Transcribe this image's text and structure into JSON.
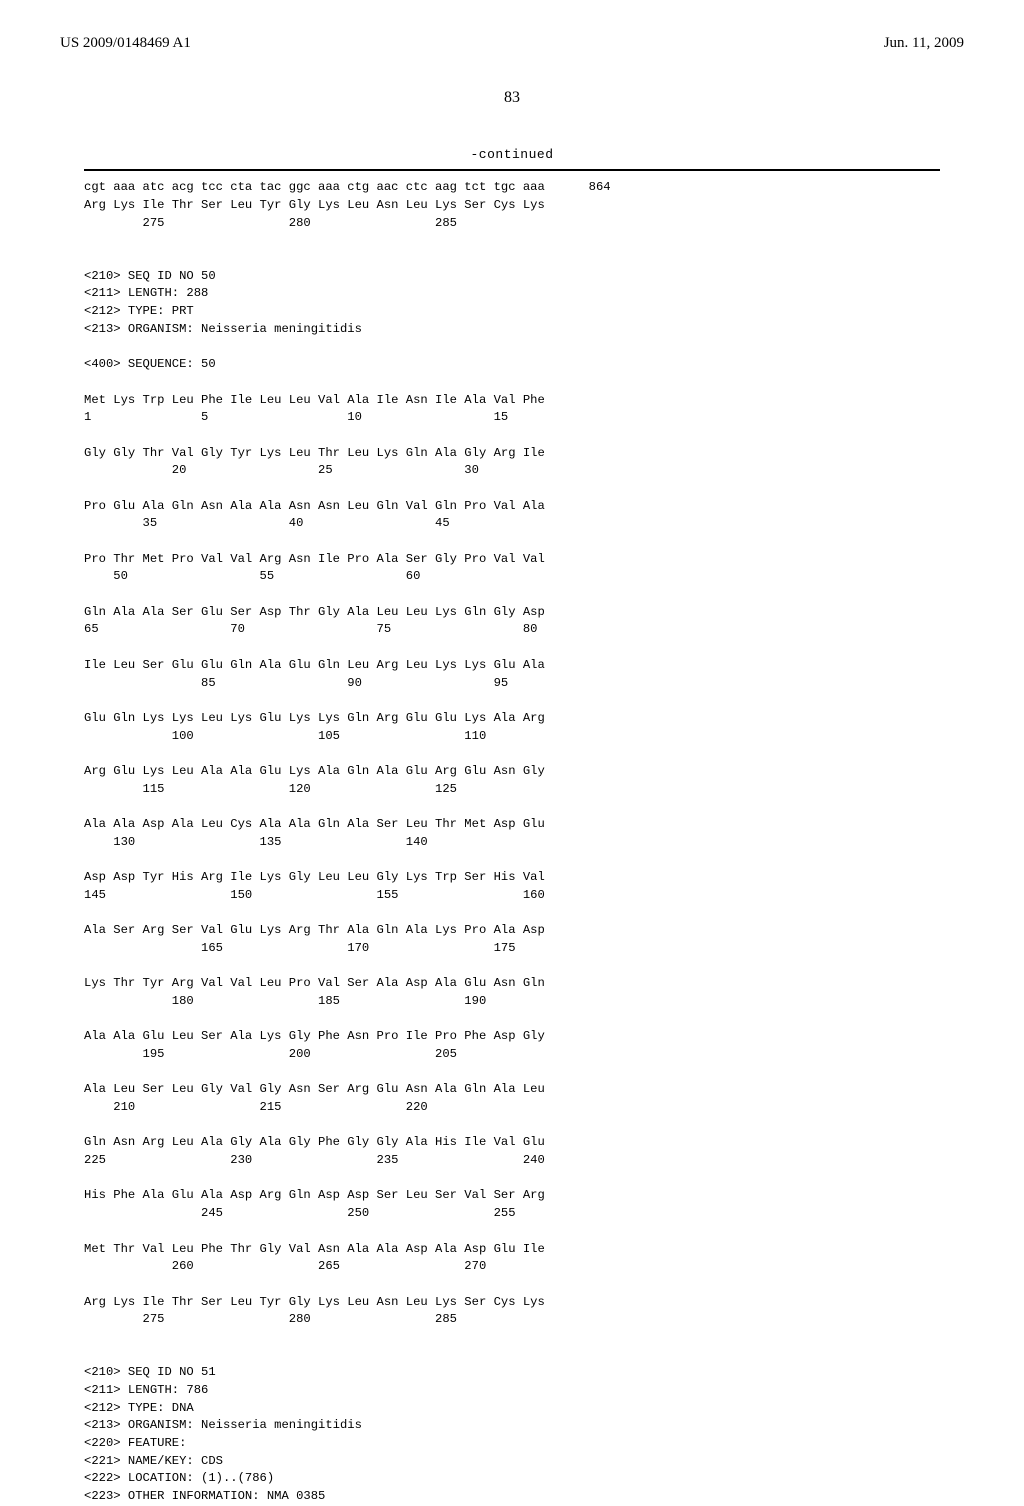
{
  "header": {
    "pub_number": "US 2009/0148469 A1",
    "pub_date": "Jun. 11, 2009"
  },
  "page_number": "83",
  "continued_label": "-continued",
  "seq50_hdr": {
    "l1": "<210> SEQ ID NO 50",
    "l2": "<211> LENGTH: 288",
    "l3": "<212> TYPE: PRT",
    "l4": "<213> ORGANISM: Neisseria meningitidis",
    "l5": "<400> SEQUENCE: 50"
  },
  "seq51_hdr": {
    "l1": "<210> SEQ ID NO 51",
    "l2": "<211> LENGTH: 786",
    "l3": "<212> TYPE: DNA",
    "l4": "<213> ORGANISM: Neisseria meningitidis",
    "l5": "<220> FEATURE:",
    "l6": "<221> NAME/KEY: CDS",
    "l7": "<222> LOCATION: (1)..(786)",
    "l8": "<223> OTHER INFORMATION: NMA 0385"
  },
  "top_block": {
    "dna": "cgt aaa atc acg tcc cta tac ggc aaa ctg aac ctc aag tct tgc aaa      864",
    "prot": "Arg Lys Ile Thr Ser Leu Tyr Gly Lys Leu Asn Leu Lys Ser Cys Lys",
    "nums": "        275                 280                 285"
  },
  "rows": [
    {
      "aa": "Met Lys Trp Leu Phe Ile Leu Leu Val Ala Ile Asn Ile Ala Val Phe",
      "nm": "1               5                   10                  15"
    },
    {
      "aa": "Gly Gly Thr Val Gly Tyr Lys Leu Thr Leu Lys Gln Ala Gly Arg Ile",
      "nm": "            20                  25                  30"
    },
    {
      "aa": "Pro Glu Ala Gln Asn Ala Ala Asn Asn Leu Gln Val Gln Pro Val Ala",
      "nm": "        35                  40                  45"
    },
    {
      "aa": "Pro Thr Met Pro Val Val Arg Asn Ile Pro Ala Ser Gly Pro Val Val",
      "nm": "    50                  55                  60"
    },
    {
      "aa": "Gln Ala Ala Ser Glu Ser Asp Thr Gly Ala Leu Leu Lys Gln Gly Asp",
      "nm": "65                  70                  75                  80"
    },
    {
      "aa": "Ile Leu Ser Glu Glu Gln Ala Glu Gln Leu Arg Leu Lys Lys Glu Ala",
      "nm": "                85                  90                  95"
    },
    {
      "aa": "Glu Gln Lys Lys Leu Lys Glu Lys Lys Gln Arg Glu Glu Lys Ala Arg",
      "nm": "            100                 105                 110"
    },
    {
      "aa": "Arg Glu Lys Leu Ala Ala Glu Lys Ala Gln Ala Glu Arg Glu Asn Gly",
      "nm": "        115                 120                 125"
    },
    {
      "aa": "Ala Ala Asp Ala Leu Cys Ala Ala Gln Ala Ser Leu Thr Met Asp Glu",
      "nm": "    130                 135                 140"
    },
    {
      "aa": "Asp Asp Tyr His Arg Ile Lys Gly Leu Leu Gly Lys Trp Ser His Val",
      "nm": "145                 150                 155                 160"
    },
    {
      "aa": "Ala Ser Arg Ser Val Glu Lys Arg Thr Ala Gln Ala Lys Pro Ala Asp",
      "nm": "                165                 170                 175"
    },
    {
      "aa": "Lys Thr Tyr Arg Val Val Leu Pro Val Ser Ala Asp Ala Glu Asn Gln",
      "nm": "            180                 185                 190"
    },
    {
      "aa": "Ala Ala Glu Leu Ser Ala Lys Gly Phe Asn Pro Ile Pro Phe Asp Gly",
      "nm": "        195                 200                 205"
    },
    {
      "aa": "Ala Leu Ser Leu Gly Val Gly Asn Ser Arg Glu Asn Ala Gln Ala Leu",
      "nm": "    210                 215                 220"
    },
    {
      "aa": "Gln Asn Arg Leu Ala Gly Ala Gly Phe Gly Gly Ala His Ile Val Glu",
      "nm": "225                 230                 235                 240"
    },
    {
      "aa": "His Phe Ala Glu Ala Asp Arg Gln Asp Asp Ser Leu Ser Val Ser Arg",
      "nm": "                245                 250                 255"
    },
    {
      "aa": "Met Thr Val Leu Phe Thr Gly Val Asn Ala Ala Asp Ala Asp Glu Ile",
      "nm": "            260                 265                 270"
    },
    {
      "aa": "Arg Lys Ile Thr Ser Leu Tyr Gly Lys Leu Asn Leu Lys Ser Cys Lys",
      "nm": "        275                 280                 285"
    }
  ]
}
